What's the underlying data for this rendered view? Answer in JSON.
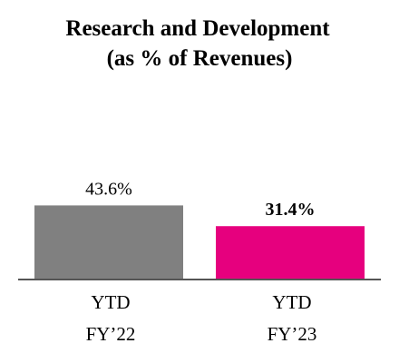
{
  "chart_data": {
    "type": "bar",
    "title": "Research and Development",
    "subtitle": "(as % of Revenues)",
    "categories": [
      {
        "lines": [
          "YTD",
          "FY’22"
        ]
      },
      {
        "lines": [
          "YTD",
          "FY’23"
        ]
      }
    ],
    "values": [
      43.6,
      31.4
    ],
    "data_labels": [
      "43.6%",
      "31.4%"
    ],
    "data_label_bold": [
      false,
      true
    ],
    "colors": [
      "#808080",
      "#e6007e"
    ],
    "ylim": [
      0,
      100
    ],
    "grid": false,
    "legend": "none",
    "baseline_color": "#555555"
  }
}
